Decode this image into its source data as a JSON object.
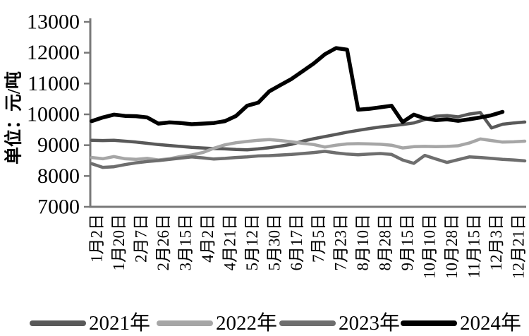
{
  "chart_data": {
    "type": "line",
    "title": "",
    "ylabel": "单位：元/吨",
    "xlabel": "",
    "ylim": [
      7000,
      13000
    ],
    "ytick_step": 1000,
    "yticks": [
      7000,
      8000,
      9000,
      10000,
      11000,
      12000,
      13000
    ],
    "grid": false,
    "legend_position": "bottom",
    "axis_color": "#787878",
    "categories": [
      "1月2日",
      "1月20日",
      "2月7日",
      "2月26日",
      "3月15日",
      "4月2日",
      "4月21日",
      "5月12日",
      "5月30日",
      "6月17日",
      "7月5日",
      "7月23日",
      "8月10日",
      "8月28日",
      "9月15日",
      "10月10日",
      "10月28日",
      "11月15日",
      "12月3日",
      "12月21日"
    ],
    "series": [
      {
        "name": "2021年",
        "color": "#595959",
        "values": [
          9160,
          9150,
          9160,
          9130,
          9100,
          9060,
          9020,
          8990,
          8960,
          8930,
          8910,
          8890,
          8880,
          8860,
          8850,
          8880,
          8920,
          8970,
          9030,
          9130,
          9210,
          9280,
          9350,
          9420,
          9480,
          9540,
          9590,
          9630,
          9670,
          9720,
          9830,
          9940,
          9960,
          9920,
          10010,
          10060,
          9560,
          9680,
          9720,
          9750
        ]
      },
      {
        "name": "2022年",
        "color": "#a6a6a6",
        "values": [
          8600,
          8560,
          8630,
          8560,
          8540,
          8570,
          8520,
          8560,
          8630,
          8680,
          8760,
          8900,
          9010,
          9080,
          9120,
          9160,
          9180,
          9150,
          9110,
          9060,
          9020,
          8940,
          9000,
          9040,
          9050,
          9040,
          9030,
          9000,
          8910,
          8950,
          8960,
          8950,
          8960,
          8980,
          9070,
          9200,
          9150,
          9100,
          9110,
          9130
        ]
      },
      {
        "name": "2023年",
        "color": "#6e6e6e",
        "values": [
          8400,
          8280,
          8300,
          8370,
          8430,
          8470,
          8500,
          8540,
          8580,
          8620,
          8590,
          8550,
          8570,
          8600,
          8620,
          8650,
          8660,
          8680,
          8700,
          8730,
          8760,
          8800,
          8750,
          8710,
          8690,
          8710,
          8730,
          8700,
          8520,
          8410,
          8670,
          8550,
          8440,
          8530,
          8620,
          8600,
          8570,
          8540,
          8520,
          8490
        ]
      },
      {
        "name": "2024年",
        "color": "#000000",
        "values": [
          9780,
          9900,
          9990,
          9950,
          9940,
          9900,
          9700,
          9740,
          9720,
          9680,
          9700,
          9720,
          9780,
          9950,
          10280,
          10380,
          10750,
          10950,
          11150,
          11400,
          11650,
          11950,
          12150,
          12100,
          10150,
          10180,
          10230,
          10280,
          9750,
          9990,
          9870,
          9810,
          9840,
          9790,
          9840,
          9900,
          9970,
          10080,
          null,
          null
        ]
      }
    ]
  }
}
